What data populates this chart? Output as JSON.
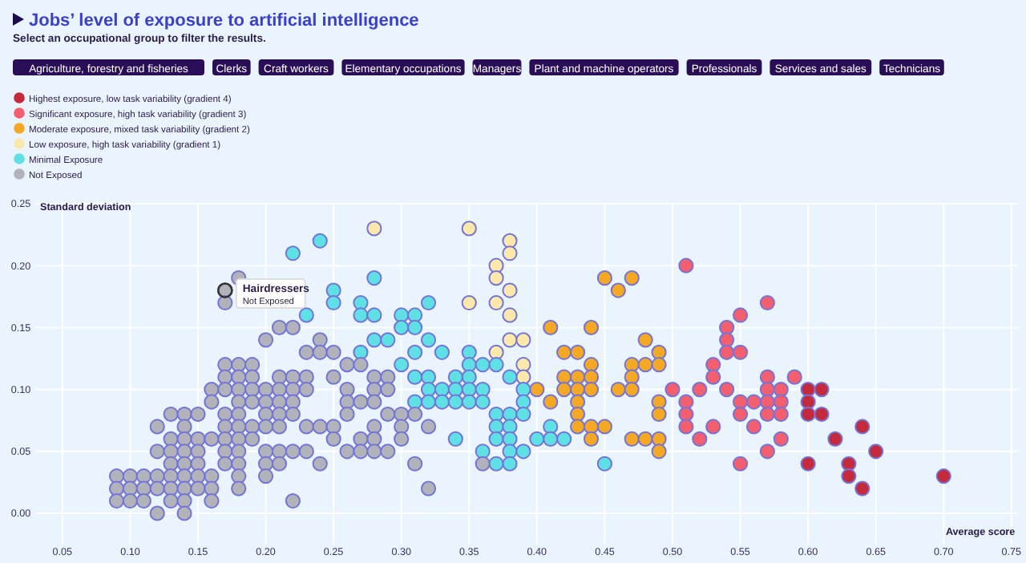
{
  "chart_data": {
    "type": "scatter",
    "title": "Jobs’ level of exposure to artificial intelligence",
    "subtitle": "Select an occupational group to filter the results.",
    "xlabel": "Average score",
    "ylabel": "Standard deviation",
    "xlim": [
      0.03,
      0.755
    ],
    "ylim": [
      -0.025,
      0.25
    ],
    "xticks": [
      {
        "value": 0.05,
        "label": "0.05"
      },
      {
        "value": 0.1,
        "label": "0.10"
      },
      {
        "value": 0.15,
        "label": "0.15"
      },
      {
        "value": 0.2,
        "label": "0.20"
      },
      {
        "value": 0.25,
        "label": "0.25"
      },
      {
        "value": 0.3,
        "label": "0.30"
      },
      {
        "value": 0.35,
        "label": "0.35"
      },
      {
        "value": 0.4,
        "label": "0.40"
      },
      {
        "value": 0.45,
        "label": "0.45"
      },
      {
        "value": 0.5,
        "label": "0.50"
      },
      {
        "value": 0.55,
        "label": "0.55"
      },
      {
        "value": 0.6,
        "label": "0.60"
      },
      {
        "value": 0.65,
        "label": "0.65"
      },
      {
        "value": 0.7,
        "label": "0.70"
      },
      {
        "value": 0.75,
        "label": "0.75"
      }
    ],
    "yticks": [
      {
        "value": 0,
        "label": "0.00"
      },
      {
        "value": 0.05,
        "label": "0.05"
      },
      {
        "value": 0.1,
        "label": "0.10"
      },
      {
        "value": 0.15,
        "label": "0.15"
      },
      {
        "value": 0.2,
        "label": "0.20"
      },
      {
        "value": 0.25,
        "label": "0.25"
      }
    ],
    "grid": true,
    "legend": "top left",
    "marker": "circle",
    "annotations": [
      "Agriculture, forestry and fisheries",
      "Clerks",
      "Craft workers",
      "Elementary occupations",
      "Managers",
      "Plant and machine operators",
      "Professionals",
      "Services and sales",
      "Technicians",
      {
        "text": "Hairdressers\nNot Exposed",
        "x": 0.17,
        "y": 0.18
      }
    ],
    "series": [
      {
        "name": "Highest exposure, low task variability (gradient 4)",
        "color": "#c42a3c",
        "x": [
          0.6,
          0.61,
          0.6,
          0.6,
          0.61,
          0.64,
          0.62,
          0.65,
          0.6,
          0.63,
          0.63,
          0.7,
          0.64
        ],
        "values": [
          0.1,
          0.1,
          0.09,
          0.08,
          0.08,
          0.07,
          0.06,
          0.05,
          0.04,
          0.04,
          0.03,
          0.03,
          0.02
        ]
      },
      {
        "name": "Significant exposure, high task variability (gradient 3)",
        "color": "#f45f70",
        "x": [
          0.51,
          0.57,
          0.55,
          0.54,
          0.54,
          0.54,
          0.55,
          0.53,
          0.53,
          0.57,
          0.59,
          0.5,
          0.52,
          0.54,
          0.57,
          0.58,
          0.51,
          0.55,
          0.56,
          0.57,
          0.58,
          0.51,
          0.55,
          0.57,
          0.58,
          0.51,
          0.53,
          0.56,
          0.52,
          0.58,
          0.57,
          0.55
        ],
        "values": [
          0.2,
          0.17,
          0.16,
          0.15,
          0.14,
          0.13,
          0.13,
          0.12,
          0.11,
          0.11,
          0.11,
          0.1,
          0.1,
          0.1,
          0.1,
          0.1,
          0.09,
          0.09,
          0.09,
          0.09,
          0.09,
          0.08,
          0.08,
          0.08,
          0.08,
          0.07,
          0.07,
          0.07,
          0.06,
          0.06,
          0.05,
          0.04
        ]
      },
      {
        "name": "Moderate exposure, mixed task variability (gradient 2)",
        "color": "#f5a823",
        "x": [
          0.45,
          0.47,
          0.46,
          0.41,
          0.44,
          0.48,
          0.42,
          0.43,
          0.49,
          0.44,
          0.47,
          0.48,
          0.49,
          0.42,
          0.43,
          0.44,
          0.47,
          0.4,
          0.42,
          0.43,
          0.44,
          0.46,
          0.47,
          0.41,
          0.43,
          0.49,
          0.43,
          0.49,
          0.43,
          0.44,
          0.45,
          0.44,
          0.47,
          0.48,
          0.49,
          0.49
        ],
        "values": [
          0.19,
          0.19,
          0.18,
          0.15,
          0.15,
          0.14,
          0.13,
          0.13,
          0.13,
          0.12,
          0.12,
          0.12,
          0.12,
          0.11,
          0.11,
          0.11,
          0.11,
          0.1,
          0.1,
          0.1,
          0.1,
          0.1,
          0.1,
          0.09,
          0.09,
          0.09,
          0.08,
          0.08,
          0.07,
          0.07,
          0.07,
          0.06,
          0.06,
          0.06,
          0.06,
          0.05
        ]
      },
      {
        "name": "Low exposure, high task variability (gradient 1)",
        "color": "#fde8ab",
        "x": [
          0.28,
          0.35,
          0.38,
          0.38,
          0.37,
          0.37,
          0.38,
          0.35,
          0.37,
          0.38,
          0.38,
          0.39,
          0.37,
          0.39,
          0.39
        ],
        "values": [
          0.23,
          0.23,
          0.22,
          0.21,
          0.2,
          0.19,
          0.18,
          0.17,
          0.17,
          0.16,
          0.14,
          0.14,
          0.13,
          0.12,
          0.11
        ]
      },
      {
        "name": "Minimal Exposure",
        "color": "#5ee0e4",
        "x": [
          0.24,
          0.22,
          0.28,
          0.25,
          0.25,
          0.27,
          0.32,
          0.23,
          0.27,
          0.28,
          0.3,
          0.31,
          0.3,
          0.31,
          0.28,
          0.29,
          0.32,
          0.27,
          0.31,
          0.33,
          0.35,
          0.3,
          0.35,
          0.36,
          0.37,
          0.31,
          0.32,
          0.34,
          0.35,
          0.38,
          0.32,
          0.33,
          0.34,
          0.35,
          0.36,
          0.39,
          0.31,
          0.32,
          0.33,
          0.34,
          0.35,
          0.36,
          0.39,
          0.37,
          0.38,
          0.39,
          0.37,
          0.38,
          0.41,
          0.34,
          0.37,
          0.38,
          0.4,
          0.41,
          0.42,
          0.36,
          0.38,
          0.39,
          0.37,
          0.38,
          0.45
        ],
        "values": [
          0.22,
          0.21,
          0.19,
          0.18,
          0.17,
          0.17,
          0.17,
          0.16,
          0.16,
          0.16,
          0.16,
          0.16,
          0.15,
          0.15,
          0.14,
          0.14,
          0.14,
          0.13,
          0.13,
          0.13,
          0.13,
          0.12,
          0.12,
          0.12,
          0.12,
          0.11,
          0.11,
          0.11,
          0.11,
          0.11,
          0.1,
          0.1,
          0.1,
          0.1,
          0.1,
          0.1,
          0.09,
          0.09,
          0.09,
          0.09,
          0.09,
          0.09,
          0.09,
          0.08,
          0.08,
          0.08,
          0.07,
          0.07,
          0.07,
          0.06,
          0.06,
          0.06,
          0.06,
          0.06,
          0.06,
          0.05,
          0.05,
          0.05,
          0.04,
          0.04,
          0.04
        ]
      },
      {
        "name": "Not Exposed",
        "color": "#b2b2ba",
        "x": [
          0.18,
          0.17,
          0.17,
          0.21,
          0.22,
          0.2,
          0.24,
          0.23,
          0.24,
          0.25,
          0.17,
          0.18,
          0.19,
          0.26,
          0.27,
          0.17,
          0.18,
          0.19,
          0.21,
          0.22,
          0.23,
          0.25,
          0.28,
          0.29,
          0.16,
          0.17,
          0.18,
          0.19,
          0.2,
          0.21,
          0.22,
          0.23,
          0.26,
          0.28,
          0.29,
          0.16,
          0.18,
          0.19,
          0.2,
          0.21,
          0.22,
          0.26,
          0.27,
          0.28,
          0.13,
          0.14,
          0.15,
          0.17,
          0.18,
          0.2,
          0.21,
          0.22,
          0.26,
          0.29,
          0.3,
          0.31,
          0.12,
          0.14,
          0.17,
          0.18,
          0.19,
          0.2,
          0.21,
          0.23,
          0.24,
          0.25,
          0.28,
          0.3,
          0.32,
          0.13,
          0.14,
          0.15,
          0.16,
          0.17,
          0.18,
          0.19,
          0.25,
          0.27,
          0.28,
          0.3,
          0.12,
          0.13,
          0.14,
          0.15,
          0.17,
          0.18,
          0.2,
          0.21,
          0.22,
          0.23,
          0.26,
          0.27,
          0.28,
          0.29,
          0.13,
          0.14,
          0.15,
          0.17,
          0.18,
          0.2,
          0.21,
          0.24,
          0.31,
          0.36,
          0.09,
          0.1,
          0.11,
          0.12,
          0.13,
          0.14,
          0.15,
          0.16,
          0.18,
          0.2,
          0.09,
          0.1,
          0.11,
          0.12,
          0.13,
          0.14,
          0.15,
          0.16,
          0.18,
          0.32,
          0.09,
          0.1,
          0.11,
          0.13,
          0.14,
          0.16,
          0.22,
          0.12,
          0.14
        ],
        "values": [
          0.19,
          0.18,
          0.17,
          0.15,
          0.15,
          0.14,
          0.14,
          0.13,
          0.13,
          0.13,
          0.12,
          0.12,
          0.12,
          0.12,
          0.12,
          0.11,
          0.11,
          0.11,
          0.11,
          0.11,
          0.11,
          0.11,
          0.11,
          0.11,
          0.1,
          0.1,
          0.1,
          0.1,
          0.1,
          0.1,
          0.1,
          0.1,
          0.1,
          0.1,
          0.1,
          0.09,
          0.09,
          0.09,
          0.09,
          0.09,
          0.09,
          0.09,
          0.09,
          0.09,
          0.08,
          0.08,
          0.08,
          0.08,
          0.08,
          0.08,
          0.08,
          0.08,
          0.08,
          0.08,
          0.08,
          0.08,
          0.07,
          0.07,
          0.07,
          0.07,
          0.07,
          0.07,
          0.07,
          0.07,
          0.07,
          0.07,
          0.07,
          0.07,
          0.07,
          0.06,
          0.06,
          0.06,
          0.06,
          0.06,
          0.06,
          0.06,
          0.06,
          0.06,
          0.06,
          0.06,
          0.05,
          0.05,
          0.05,
          0.05,
          0.05,
          0.05,
          0.05,
          0.05,
          0.05,
          0.05,
          0.05,
          0.05,
          0.05,
          0.05,
          0.04,
          0.04,
          0.04,
          0.04,
          0.04,
          0.04,
          0.04,
          0.04,
          0.04,
          0.04,
          0.03,
          0.03,
          0.03,
          0.03,
          0.03,
          0.03,
          0.03,
          0.03,
          0.03,
          0.03,
          0.02,
          0.02,
          0.02,
          0.02,
          0.02,
          0.02,
          0.02,
          0.02,
          0.02,
          0.02,
          0.01,
          0.01,
          0.01,
          0.01,
          0.01,
          0.01,
          0.01,
          0,
          0
        ]
      }
    ]
  }
}
